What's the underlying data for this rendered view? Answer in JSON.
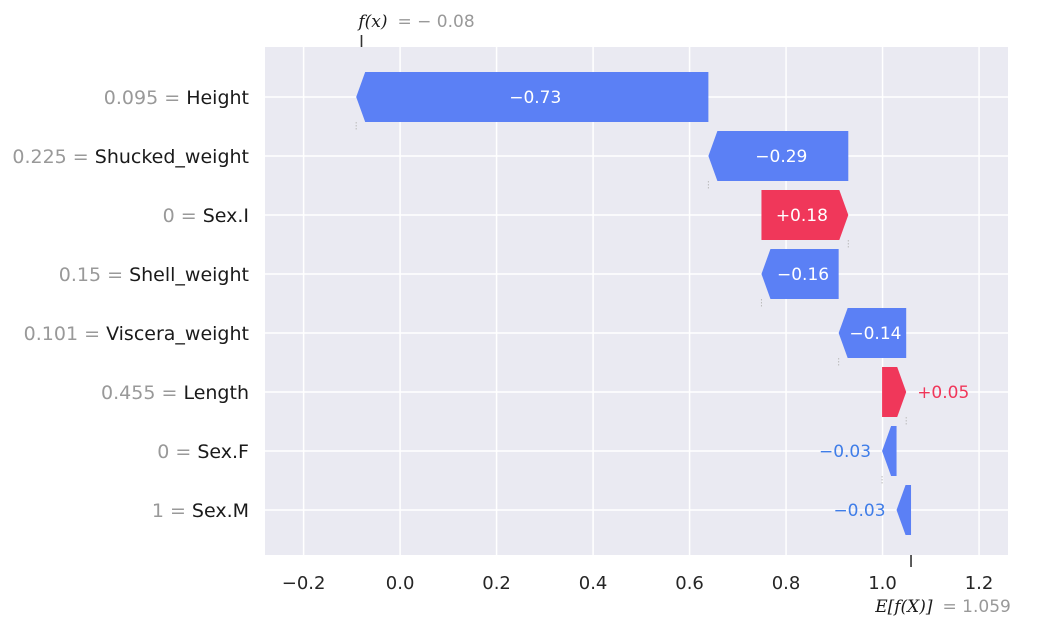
{
  "chart_data": {
    "type": "waterfall",
    "x_ticks": [
      "−0.2",
      "0.0",
      "0.2",
      "0.4",
      "0.6",
      "0.8",
      "1.0",
      "1.2"
    ],
    "x_tick_values": [
      -0.2,
      0.0,
      0.2,
      0.4,
      0.6,
      0.8,
      1.0,
      1.2
    ],
    "xlim": [
      -0.28,
      1.26
    ],
    "base_value": 1.059,
    "base_label_math": "E[f(X)]",
    "base_label_value": "= 1.059",
    "output_value": -0.08,
    "output_label_math": "f(x)",
    "output_label_value": "= − 0.08",
    "grid": true,
    "features": [
      {
        "value_text": "0.095",
        "name": "Height",
        "contribution": -0.73,
        "label": "−0.73",
        "label_position": "inside"
      },
      {
        "value_text": "0.225",
        "name": "Shucked_weight",
        "contribution": -0.29,
        "label": "−0.29",
        "label_position": "inside"
      },
      {
        "value_text": "0",
        "name": "Sex.I",
        "contribution": 0.18,
        "label": "+0.18",
        "label_position": "inside"
      },
      {
        "value_text": "0.15",
        "name": "Shell_weight",
        "contribution": -0.16,
        "label": "−0.16",
        "label_position": "inside"
      },
      {
        "value_text": "0.101",
        "name": "Viscera_weight",
        "contribution": -0.14,
        "label": "−0.14",
        "label_position": "inside"
      },
      {
        "value_text": "0.455",
        "name": "Length",
        "contribution": 0.05,
        "label": "+0.05",
        "label_position": "outside"
      },
      {
        "value_text": "0",
        "name": "Sex.F",
        "contribution": -0.03,
        "label": "−0.03",
        "label_position": "outside"
      },
      {
        "value_text": "1",
        "name": "Sex.M",
        "contribution": -0.03,
        "label": "−0.03",
        "label_position": "outside"
      }
    ],
    "colors": {
      "positive": "#ff0d57",
      "negative": "#1e88e5",
      "positive_bar": "#f0375a",
      "negative_bar": "#5b80f5",
      "positive_text_outside": "#f0375a",
      "negative_text_outside": "#3f7de8",
      "plot_bg": "#eaeaf2",
      "grid": "#ffffff"
    }
  }
}
